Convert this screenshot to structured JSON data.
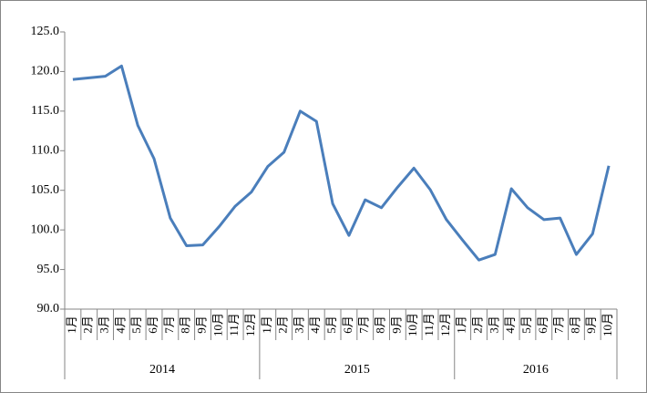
{
  "chart_data": {
    "type": "line",
    "categories": [
      "1月",
      "2月",
      "3月",
      "4月",
      "5月",
      "6月",
      "7月",
      "8月",
      "9月",
      "10月",
      "11月",
      "12月",
      "1月",
      "2月",
      "3月",
      "4月",
      "5月",
      "6月",
      "7月",
      "8月",
      "9月",
      "10月",
      "11月",
      "12月",
      "1月",
      "2月",
      "3月",
      "4月",
      "5月",
      "6月",
      "7月",
      "8月",
      "9月",
      "10月"
    ],
    "groups": [
      "2014",
      "2015",
      "2016"
    ],
    "series": [
      {
        "color": "#4a7ebb",
        "values": [
          119.0,
          119.2,
          119.4,
          120.7,
          113.2,
          109.0,
          101.5,
          98.0,
          98.1,
          100.4,
          103.0,
          104.8,
          108.0,
          109.8,
          115.0,
          113.7,
          103.3,
          99.3,
          103.8,
          102.8,
          105.4,
          107.8,
          105.1,
          101.3,
          98.7,
          96.2,
          96.9,
          105.2,
          102.8,
          101.3,
          101.5,
          96.9,
          99.5,
          108.1
        ]
      }
    ],
    "ylim": [
      90,
      125
    ],
    "yticks": [
      {
        "value": 90,
        "label": "90.0"
      },
      {
        "value": 95,
        "label": "95.0"
      },
      {
        "value": 100,
        "label": "100.0"
      },
      {
        "value": 105,
        "label": "105.0"
      },
      {
        "value": 110,
        "label": "110.0"
      },
      {
        "value": 115,
        "label": "115.0"
      },
      {
        "value": 120,
        "label": "120.0"
      },
      {
        "value": 125,
        "label": "125.0"
      }
    ]
  }
}
